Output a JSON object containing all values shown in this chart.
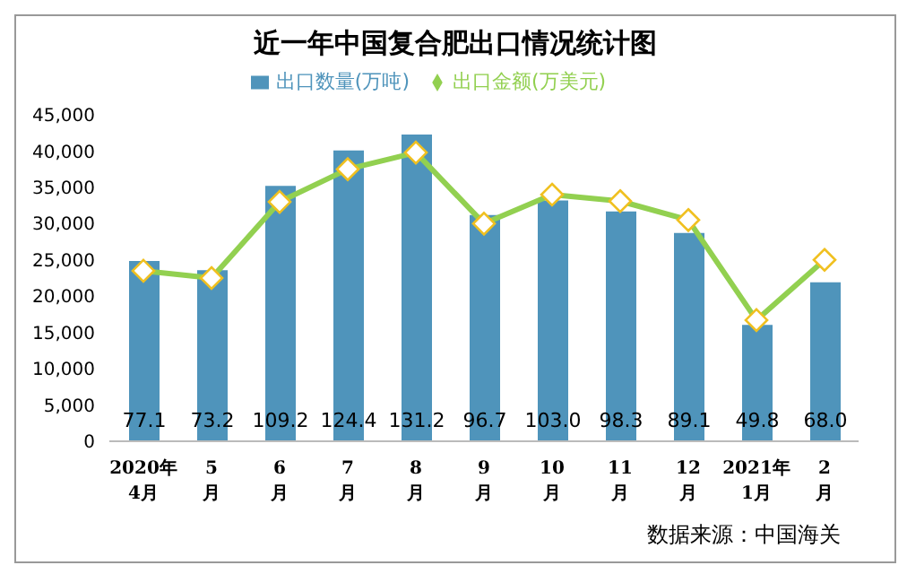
{
  "chart_data": {
    "type": "bar",
    "title": "近一年中国复合肥出口情况统计图",
    "categories": [
      "2020年\n4月",
      "5\n月",
      "6\n月",
      "7\n月",
      "8\n月",
      "9\n月",
      "10\n月",
      "11\n月",
      "12\n月",
      "2021年\n1月",
      "2\n月"
    ],
    "series": [
      {
        "name": "出口数量(万吨)",
        "axis": "y2",
        "color": "#4f94bb",
        "values": [
          77.1,
          73.2,
          109.2,
          124.4,
          131.2,
          96.7,
          103.0,
          98.3,
          89.1,
          49.8,
          68.0
        ],
        "value_labels": [
          "77.1",
          "73.2",
          "109.2",
          "124.4",
          "131.2",
          "96.7",
          "103.0",
          "98.3",
          "89.1",
          "49.8",
          "68.0"
        ]
      },
      {
        "name": "出口金额(万美元)",
        "type": "line",
        "color": "#92d050",
        "marker": "diamond",
        "values": [
          23500,
          22500,
          33000,
          37500,
          39800,
          30000,
          34000,
          33100,
          30500,
          16700,
          25000
        ]
      }
    ],
    "ylim": [
      0,
      45000
    ],
    "yticks": [
      0,
      {
        "value": 5000,
        "label": "5,000"
      },
      {
        "value": 10000,
        "label": "10,000"
      },
      {
        "value": 15000,
        "label": "15,000"
      },
      {
        "value": 20000,
        "label": "20,000"
      },
      {
        "value": 25000,
        "label": "25,000"
      },
      {
        "value": 30000,
        "label": "30,000"
      },
      {
        "value": 35000,
        "label": "35,000"
      },
      {
        "value": 40000,
        "label": "40,000"
      },
      {
        "value": 45000,
        "label": "45,000"
      }
    ],
    "legend": "top",
    "annotations": [
      "数据来源：中国海关"
    ]
  }
}
